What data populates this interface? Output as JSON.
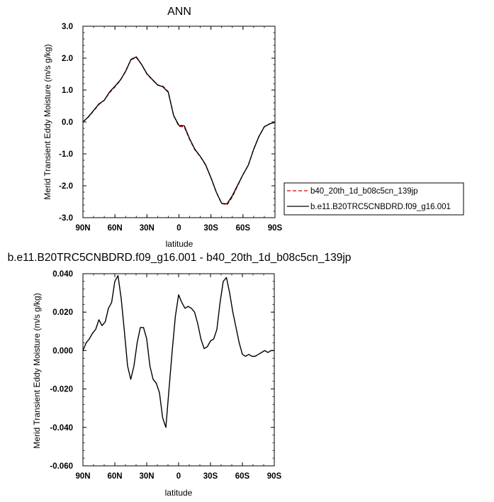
{
  "chart_data": [
    {
      "type": "line",
      "title": "ANN",
      "xlabel": "latitude",
      "ylabel": "Merid Transient Eddy Moisture (m/s g/kg)",
      "xlim": [
        90,
        -90
      ],
      "ylim": [
        -3.0,
        3.0
      ],
      "xtick_values": [
        90,
        60,
        30,
        0,
        -30,
        -60,
        -90
      ],
      "xtick_labels": [
        "90N",
        "60N",
        "30N",
        "0",
        "30S",
        "60S",
        "90S"
      ],
      "ytick_values": [
        -3.0,
        -2.0,
        -1.0,
        0.0,
        1.0,
        2.0,
        3.0
      ],
      "ytick_labels": [
        "-3.0",
        "-2.0",
        "-1.0",
        "0.0",
        "1.0",
        "2.0",
        "3.0"
      ],
      "grid": false,
      "legend": "right",
      "x": [
        90,
        85,
        80,
        75,
        70,
        65,
        60,
        55,
        50,
        45,
        40,
        35,
        30,
        25,
        20,
        15,
        10,
        5,
        0,
        -5,
        -10,
        -15,
        -20,
        -25,
        -30,
        -35,
        -40,
        -45,
        -50,
        -55,
        -60,
        -65,
        -70,
        -75,
        -80,
        -85,
        -90
      ],
      "series": [
        {
          "name": "b40_20th_1d_b08c5cn_139jp",
          "color": "#cc0000",
          "dash": "dashed",
          "values": [
            0.0,
            0.15,
            0.35,
            0.55,
            0.68,
            0.92,
            1.1,
            1.3,
            1.6,
            1.95,
            2.02,
            1.8,
            1.5,
            1.32,
            1.16,
            1.12,
            0.95,
            0.2,
            -0.14,
            -0.15,
            -0.55,
            -0.88,
            -1.08,
            -1.35,
            -1.75,
            -2.2,
            -2.55,
            -2.6,
            -2.35,
            -2.0,
            -1.65,
            -1.35,
            -0.85,
            -0.45,
            -0.15,
            -0.06,
            -0.01
          ]
        },
        {
          "name": "b.e11.B20TRC5CNBDRD.f09_g16.001",
          "color": "#000000",
          "dash": "solid",
          "values": [
            0.0,
            0.155,
            0.36,
            0.565,
            0.68,
            0.94,
            1.12,
            1.31,
            1.58,
            1.96,
            2.04,
            1.8,
            1.51,
            1.33,
            1.16,
            1.1,
            0.93,
            0.2,
            -0.11,
            -0.12,
            -0.53,
            -0.86,
            -1.08,
            -1.34,
            -1.75,
            -2.2,
            -2.55,
            -2.57,
            -2.31,
            -1.98,
            -1.65,
            -1.35,
            -0.86,
            -0.45,
            -0.15,
            -0.06,
            -0.01
          ]
        }
      ]
    },
    {
      "type": "line",
      "title": "b.e11.B20TRC5CNBDRD.f09_g16.001 - b40_20th_1d_b08c5cn_139jp",
      "xlabel": "latitude",
      "ylabel": "Merid Transient Eddy Moisture (m/s g/kg)",
      "xlim": [
        90,
        -90
      ],
      "ylim": [
        -0.06,
        0.04
      ],
      "xtick_values": [
        90,
        60,
        30,
        0,
        -30,
        -60,
        -90
      ],
      "xtick_labels": [
        "90N",
        "60N",
        "30N",
        "0",
        "30S",
        "60S",
        "90S"
      ],
      "ytick_values": [
        -0.06,
        -0.04,
        -0.02,
        0.0,
        0.02,
        0.04
      ],
      "ytick_labels": [
        "-0.060",
        "-0.040",
        "-0.020",
        "0.000",
        "0.020",
        "0.040"
      ],
      "grid": false,
      "x": [
        90,
        87,
        84,
        81,
        78,
        75,
        72,
        69,
        66,
        63,
        60,
        57,
        54,
        51,
        48,
        45,
        42,
        39,
        36,
        33,
        30,
        27,
        24,
        21,
        18,
        15,
        12,
        9,
        6,
        3,
        0,
        -3,
        -6,
        -9,
        -12,
        -15,
        -18,
        -21,
        -24,
        -27,
        -30,
        -33,
        -36,
        -39,
        -42,
        -45,
        -48,
        -51,
        -54,
        -57,
        -60,
        -63,
        -66,
        -69,
        -72,
        -75,
        -78,
        -81,
        -84,
        -87,
        -90
      ],
      "series": [
        {
          "color": "#000000",
          "dash": "solid",
          "values": [
            0.0,
            0.004,
            0.006,
            0.009,
            0.011,
            0.016,
            0.013,
            0.015,
            0.022,
            0.025,
            0.036,
            0.039,
            0.027,
            0.01,
            -0.008,
            -0.015,
            -0.008,
            0.004,
            0.012,
            0.012,
            0.006,
            -0.008,
            -0.015,
            -0.017,
            -0.022,
            -0.035,
            -0.04,
            -0.02,
            0.0,
            0.018,
            0.029,
            0.025,
            0.022,
            0.023,
            0.022,
            0.02,
            0.014,
            0.006,
            0.001,
            0.002,
            0.005,
            0.006,
            0.011,
            0.025,
            0.036,
            0.038,
            0.03,
            0.02,
            0.012,
            0.004,
            -0.002,
            -0.003,
            -0.002,
            -0.003,
            -0.003,
            -0.002,
            -0.001,
            0.0,
            -0.001,
            0.0,
            0.0
          ]
        }
      ]
    }
  ]
}
